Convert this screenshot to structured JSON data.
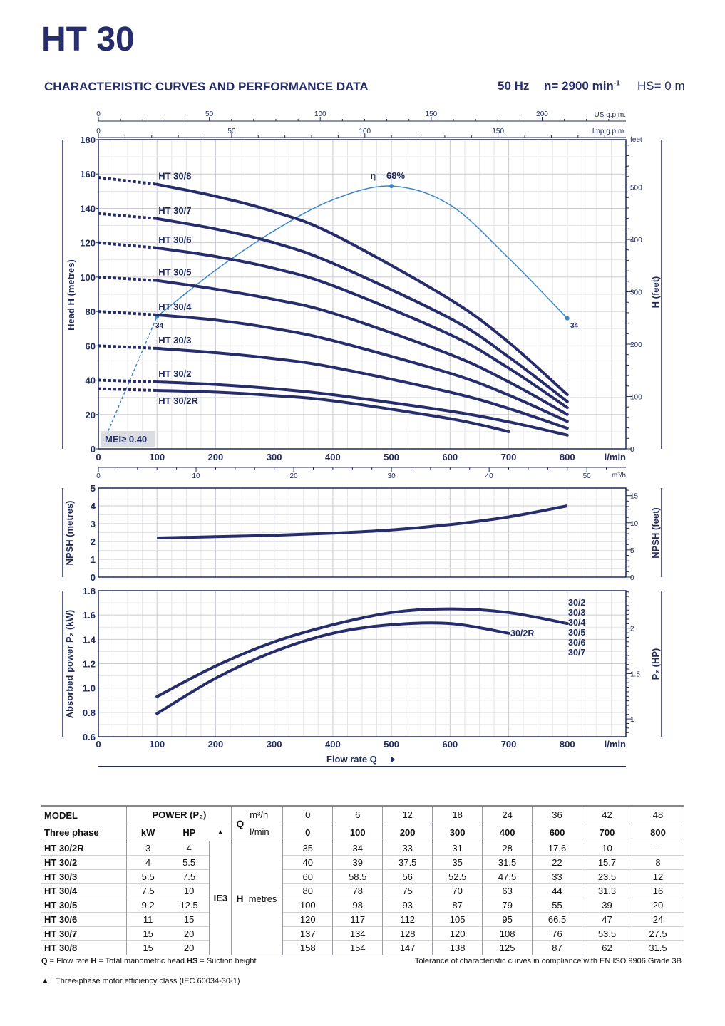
{
  "header": {
    "title": "HT 30",
    "subtitle": "CHARACTERISTIC CURVES AND PERFORMANCE DATA",
    "freq": "50 Hz",
    "speed": "n= 2900 min",
    "speed_sup": "-1",
    "hs": "HS= 0 m"
  },
  "chart_data": [
    {
      "type": "line",
      "title": "Head curves",
      "xlabel": "l/min",
      "ylabel": "Head H (metres)",
      "ylabel_right": "H (feet)",
      "xlim": [
        0,
        900
      ],
      "ylim": [
        0,
        180
      ],
      "x_ticks": [
        "0",
        "100",
        "200",
        "300",
        "400",
        "500",
        "600",
        "700",
        "800"
      ],
      "y_ticks": [
        "0",
        "20",
        "40",
        "60",
        "80",
        "100",
        "120",
        "140",
        "160",
        "180"
      ],
      "feet_ticks": [
        "0",
        "100",
        "200",
        "300",
        "400",
        "500",
        "feet"
      ],
      "usgpm_label": "US g.p.m.",
      "usgpm_ticks": [
        "0",
        "50",
        "100",
        "150",
        "200"
      ],
      "impgpm_label": "Imp g.p.m.",
      "impgpm_ticks": [
        "0",
        "50",
        "100",
        "150"
      ],
      "m3h_label": "m³/h",
      "m3h_ticks": [
        "0",
        "10",
        "20",
        "30",
        "40",
        "50"
      ],
      "x": [
        0,
        100,
        200,
        300,
        400,
        600,
        700,
        800
      ],
      "series": [
        {
          "name": "HT 30/8",
          "values": [
            158,
            154,
            147,
            138,
            125,
            87,
            62,
            31.5
          ]
        },
        {
          "name": "HT 30/7",
          "values": [
            137,
            134,
            128,
            120,
            108,
            76,
            53.5,
            27.5
          ]
        },
        {
          "name": "HT 30/6",
          "values": [
            120,
            117,
            112,
            105,
            95,
            66.5,
            47,
            24
          ]
        },
        {
          "name": "HT 30/5",
          "values": [
            100,
            98,
            93,
            87,
            79,
            55,
            39,
            20
          ]
        },
        {
          "name": "HT 30/4",
          "values": [
            80,
            78,
            75,
            70,
            63,
            44,
            31.3,
            16
          ]
        },
        {
          "name": "HT 30/3",
          "values": [
            60,
            58.5,
            56,
            52.5,
            47.5,
            33,
            23.5,
            12
          ]
        },
        {
          "name": "HT 30/2",
          "values": [
            40,
            39,
            37.5,
            35,
            31.5,
            22,
            15.7,
            8
          ]
        },
        {
          "name": "HT 30/2R",
          "values": [
            35,
            34,
            33,
            31,
            28,
            17.6,
            10,
            null
          ]
        }
      ],
      "efficiency": {
        "label": "η = ",
        "peak": "68%",
        "x": [
          10,
          100,
          200,
          300,
          400,
          500,
          600,
          700,
          800
        ],
        "head_scale": [
          5,
          77,
          104,
          127,
          145,
          153,
          142,
          111,
          76
        ],
        "left_value": "34",
        "right_value": "34"
      },
      "mei": "MEI≥ 0.40"
    },
    {
      "type": "line",
      "title": "NPSH",
      "ylabel": "NPSH (metres)",
      "ylabel_right": "NPSH (feet)",
      "ylim": [
        0,
        5
      ],
      "y_ticks": [
        "0",
        "1",
        "2",
        "3",
        "4",
        "5"
      ],
      "feet_ticks": [
        "0",
        "5",
        "10",
        "15"
      ],
      "x": [
        100,
        200,
        300,
        400,
        500,
        600,
        700,
        800
      ],
      "values": [
        2.2,
        2.27,
        2.35,
        2.47,
        2.65,
        2.95,
        3.38,
        4.0
      ]
    },
    {
      "type": "line",
      "title": "Absorbed power",
      "ylabel": "Absorbed power P₂ (kW)",
      "ylabel_right": "P₂ (HP)",
      "xlabel": "Flow rate Q",
      "x_unit": "l/min",
      "ylim": [
        0.6,
        1.8
      ],
      "y_ticks": [
        "0.6",
        "0.8",
        "1.0",
        "1.2",
        "1.4",
        "1.6",
        "1.8"
      ],
      "hp_ticks": [
        "1",
        "1.5",
        "2"
      ],
      "x_ticks": [
        "0",
        "100",
        "200",
        "300",
        "400",
        "500",
        "600",
        "700",
        "800"
      ],
      "series": [
        {
          "name": "30/2 30/3 30/4 30/5 30/6 30/7",
          "x": [
            100,
            200,
            300,
            400,
            500,
            600,
            700,
            800
          ],
          "values": [
            0.93,
            1.18,
            1.38,
            1.52,
            1.62,
            1.65,
            1.62,
            1.53
          ]
        },
        {
          "name": "30/2R",
          "x": [
            100,
            200,
            300,
            400,
            500,
            600,
            700
          ],
          "values": [
            0.79,
            1.08,
            1.3,
            1.45,
            1.52,
            1.53,
            1.45
          ]
        }
      ],
      "labels_main": [
        "30/2",
        "30/3",
        "30/4",
        "30/5",
        "30/6",
        "30/7"
      ],
      "label_r": "30/2R"
    }
  ],
  "table": {
    "h_model": "MODEL",
    "h_three_phase": "Three phase",
    "h_power": "POWER (P₂)",
    "h_kw": "kW",
    "h_hp": "HP",
    "h_tri": "▲",
    "h_q": "Q",
    "h_m3h": "m³/h",
    "h_lmin": "l/min",
    "m3h": [
      "0",
      "6",
      "12",
      "18",
      "24",
      "36",
      "42",
      "48"
    ],
    "lmin": [
      "0",
      "100",
      "200",
      "300",
      "400",
      "600",
      "700",
      "800"
    ],
    "ie3": "IE3",
    "h_label": "H",
    "h_unit": "metres",
    "rows": [
      {
        "model": "HT 30/2R",
        "kw": "3",
        "hp": "4",
        "h": [
          "35",
          "34",
          "33",
          "31",
          "28",
          "17.6",
          "10",
          "–"
        ]
      },
      {
        "model": "HT 30/2",
        "kw": "4",
        "hp": "5.5",
        "h": [
          "40",
          "39",
          "37.5",
          "35",
          "31.5",
          "22",
          "15.7",
          "8"
        ]
      },
      {
        "model": "HT 30/3",
        "kw": "5.5",
        "hp": "7.5",
        "h": [
          "60",
          "58.5",
          "56",
          "52.5",
          "47.5",
          "33",
          "23.5",
          "12"
        ]
      },
      {
        "model": "HT 30/4",
        "kw": "7.5",
        "hp": "10",
        "h": [
          "80",
          "78",
          "75",
          "70",
          "63",
          "44",
          "31.3",
          "16"
        ]
      },
      {
        "model": "HT 30/5",
        "kw": "9.2",
        "hp": "12.5",
        "h": [
          "100",
          "98",
          "93",
          "87",
          "79",
          "55",
          "39",
          "20"
        ]
      },
      {
        "model": "HT 30/6",
        "kw": "11",
        "hp": "15",
        "h": [
          "120",
          "117",
          "112",
          "105",
          "95",
          "66.5",
          "47",
          "24"
        ]
      },
      {
        "model": "HT 30/7",
        "kw": "15",
        "hp": "20",
        "h": [
          "137",
          "134",
          "128",
          "120",
          "108",
          "76",
          "53.5",
          "27.5"
        ]
      },
      {
        "model": "HT 30/8",
        "kw": "15",
        "hp": "20",
        "h": [
          "158",
          "154",
          "147",
          "138",
          "125",
          "87",
          "62",
          "31.5"
        ]
      }
    ]
  },
  "footer": {
    "q_key": "Q",
    "q_def": " = Flow rate ",
    "h_key": "H",
    "h_def": " = Total manometric head ",
    "hs_key": "HS",
    "hs_def": " = Suction height",
    "tolerance": "Tolerance of characteristic curves in compliance with EN ISO 9906 Grade 3B",
    "tri": "▲",
    "ie_note": "Three-phase motor efficiency class (IEC 60034-30-1)"
  }
}
